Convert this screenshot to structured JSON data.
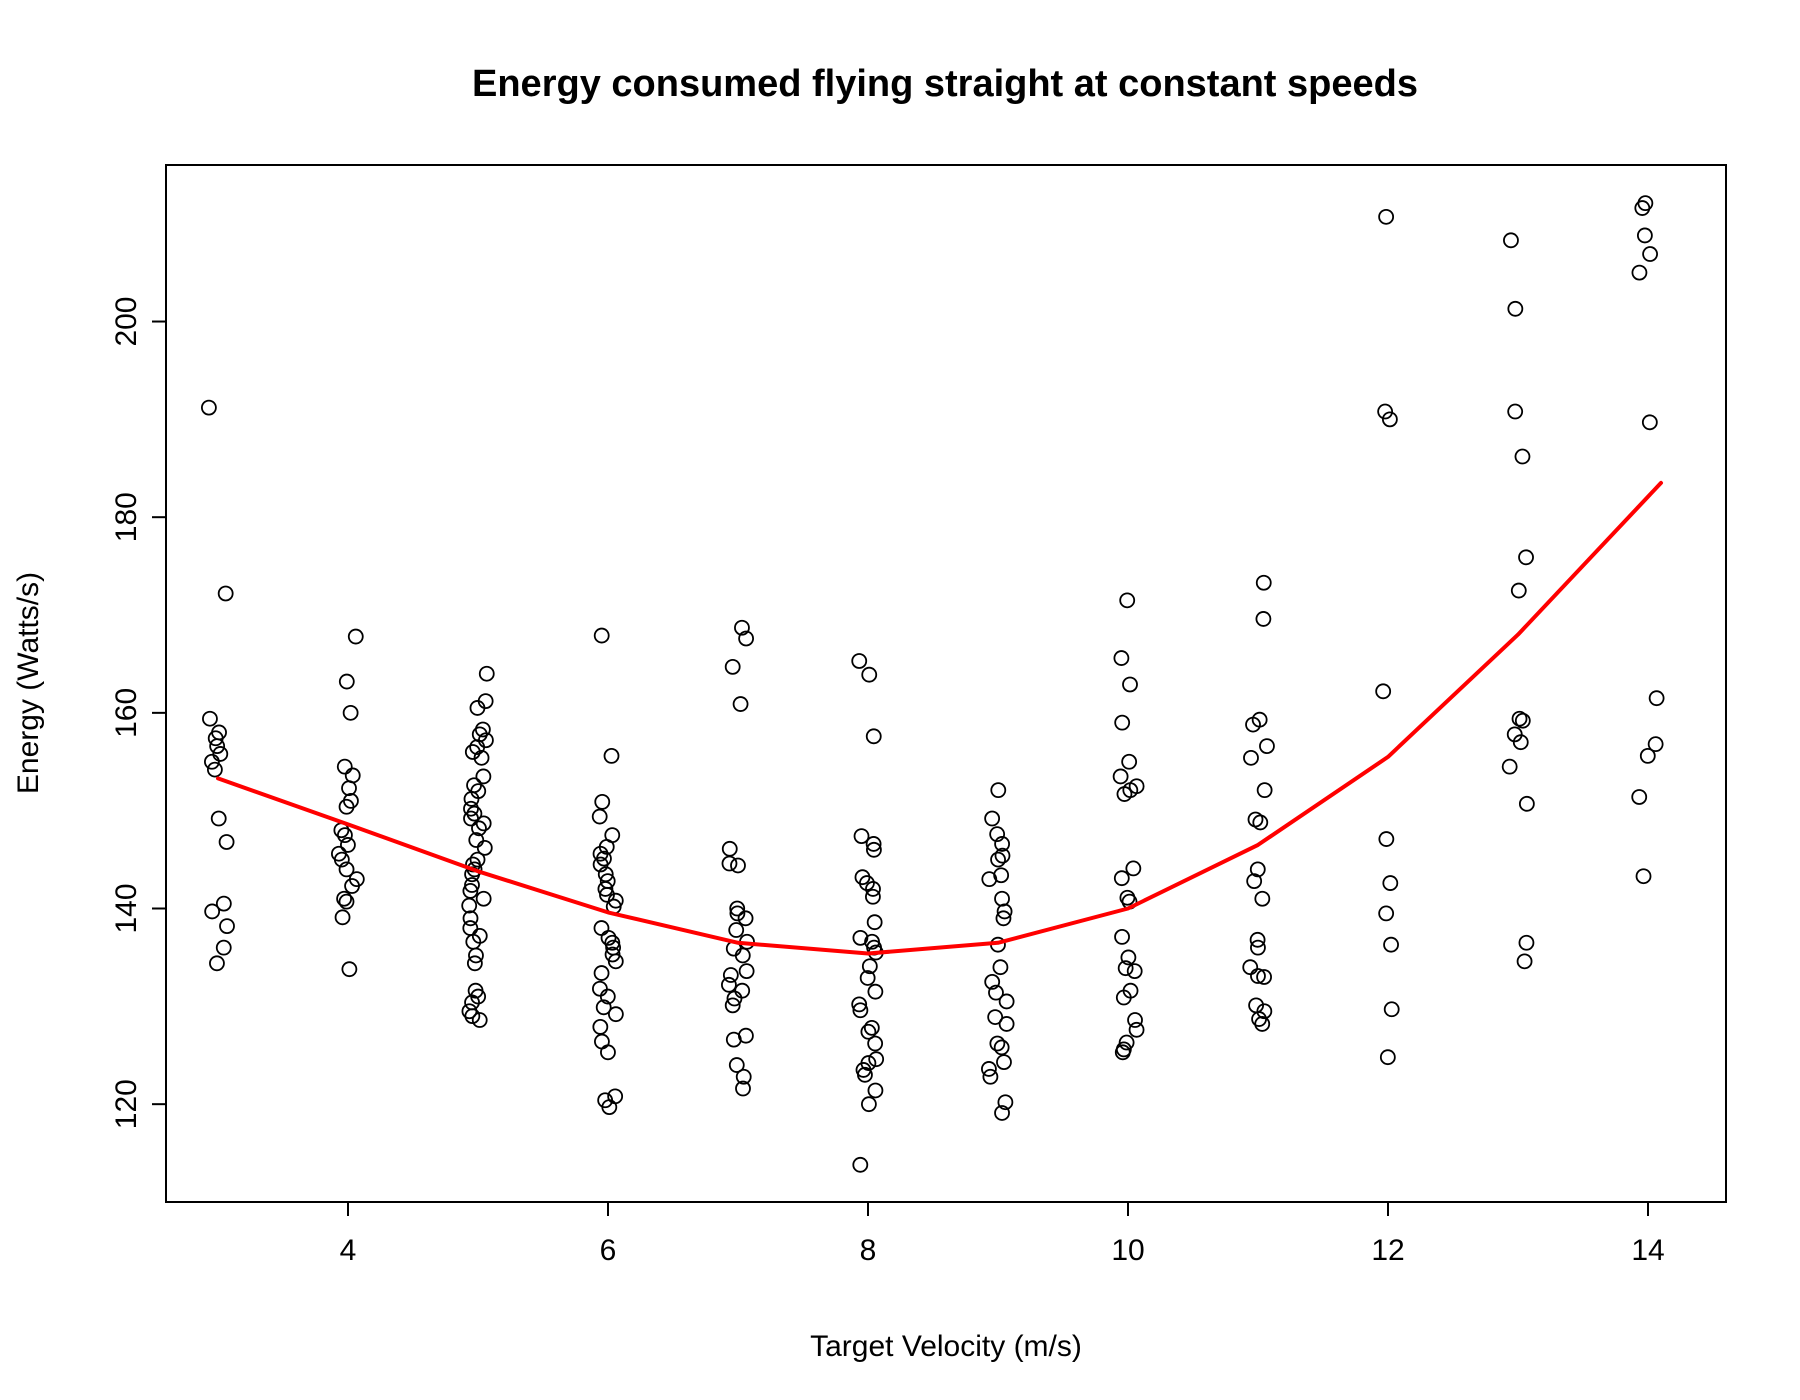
{
  "chart_data": {
    "type": "scatter",
    "title": "Energy consumed flying straight at constant speeds",
    "xlabel": "Target Velocity (m/s)",
    "ylabel": "Energy (Watts/s)",
    "xlim": [
      2.6,
      14.6
    ],
    "ylim": [
      110,
      216
    ],
    "x_ticks": [
      4,
      6,
      8,
      10,
      12,
      14
    ],
    "y_ticks": [
      120,
      140,
      160,
      180,
      200
    ],
    "grid": false,
    "series": [
      {
        "kind": "points",
        "marker": "open-circle",
        "color": "#000000",
        "points": [
          [
            3.0,
            191.2
          ],
          [
            3.0,
            172.2
          ],
          [
            3.0,
            159.4
          ],
          [
            3.0,
            158.0
          ],
          [
            3.0,
            157.4
          ],
          [
            3.0,
            156.6
          ],
          [
            3.0,
            155.8
          ],
          [
            3.0,
            155.0
          ],
          [
            3.0,
            154.2
          ],
          [
            3.0,
            149.2
          ],
          [
            3.0,
            146.8
          ],
          [
            3.0,
            140.5
          ],
          [
            3.0,
            139.7
          ],
          [
            3.0,
            138.2
          ],
          [
            3.0,
            136.0
          ],
          [
            3.0,
            134.4
          ],
          [
            4.0,
            167.8
          ],
          [
            4.0,
            163.2
          ],
          [
            4.0,
            160.0
          ],
          [
            4.0,
            154.5
          ],
          [
            4.0,
            153.6
          ],
          [
            4.0,
            152.3
          ],
          [
            4.0,
            151.0
          ],
          [
            4.0,
            150.4
          ],
          [
            4.0,
            148.0
          ],
          [
            4.0,
            147.5
          ],
          [
            4.0,
            146.5
          ],
          [
            4.0,
            145.6
          ],
          [
            4.0,
            145.0
          ],
          [
            4.0,
            144.0
          ],
          [
            4.0,
            143.0
          ],
          [
            4.0,
            142.3
          ],
          [
            4.0,
            141.0
          ],
          [
            4.0,
            140.7
          ],
          [
            4.0,
            139.1
          ],
          [
            4.0,
            133.8
          ],
          [
            5.0,
            164.0
          ],
          [
            5.0,
            161.2
          ],
          [
            5.0,
            160.5
          ],
          [
            5.0,
            158.3
          ],
          [
            5.0,
            157.8
          ],
          [
            5.0,
            157.2
          ],
          [
            5.0,
            156.5
          ],
          [
            5.0,
            156.0
          ],
          [
            5.0,
            155.4
          ],
          [
            5.0,
            153.5
          ],
          [
            5.0,
            152.6
          ],
          [
            5.0,
            152.0
          ],
          [
            5.0,
            151.2
          ],
          [
            5.0,
            150.2
          ],
          [
            5.0,
            149.7
          ],
          [
            5.0,
            149.2
          ],
          [
            5.0,
            148.7
          ],
          [
            5.0,
            148.2
          ],
          [
            5.0,
            147.0
          ],
          [
            5.0,
            146.2
          ],
          [
            5.0,
            145.0
          ],
          [
            5.0,
            144.5
          ],
          [
            5.0,
            144.0
          ],
          [
            5.0,
            143.5
          ],
          [
            5.0,
            142.4
          ],
          [
            5.0,
            141.8
          ],
          [
            5.0,
            141.0
          ],
          [
            5.0,
            140.3
          ],
          [
            5.0,
            139.0
          ],
          [
            5.0,
            138.0
          ],
          [
            5.0,
            137.2
          ],
          [
            5.0,
            136.6
          ],
          [
            5.0,
            135.2
          ],
          [
            5.0,
            134.4
          ],
          [
            5.0,
            131.6
          ],
          [
            5.0,
            131.0
          ],
          [
            5.0,
            130.4
          ],
          [
            5.0,
            129.5
          ],
          [
            5.0,
            129.0
          ],
          [
            5.0,
            128.6
          ],
          [
            6.0,
            167.9
          ],
          [
            6.0,
            155.6
          ],
          [
            6.0,
            150.9
          ],
          [
            6.0,
            149.4
          ],
          [
            6.0,
            147.5
          ],
          [
            6.0,
            146.3
          ],
          [
            6.0,
            145.6
          ],
          [
            6.0,
            145.1
          ],
          [
            6.0,
            144.5
          ],
          [
            6.0,
            143.5
          ],
          [
            6.0,
            142.8
          ],
          [
            6.0,
            142.0
          ],
          [
            6.0,
            141.4
          ],
          [
            6.0,
            140.8
          ],
          [
            6.0,
            140.2
          ],
          [
            6.0,
            138.0
          ],
          [
            6.0,
            137.0
          ],
          [
            6.0,
            136.5
          ],
          [
            6.0,
            136.0
          ],
          [
            6.0,
            135.3
          ],
          [
            6.0,
            134.6
          ],
          [
            6.0,
            133.4
          ],
          [
            6.0,
            131.8
          ],
          [
            6.0,
            131.0
          ],
          [
            6.0,
            129.9
          ],
          [
            6.0,
            129.2
          ],
          [
            6.0,
            127.9
          ],
          [
            6.0,
            126.4
          ],
          [
            6.0,
            125.3
          ],
          [
            6.0,
            120.8
          ],
          [
            6.0,
            120.4
          ],
          [
            6.0,
            119.7
          ],
          [
            7.0,
            168.7
          ],
          [
            7.0,
            167.6
          ],
          [
            7.0,
            164.7
          ],
          [
            7.0,
            160.9
          ],
          [
            7.0,
            146.1
          ],
          [
            7.0,
            144.6
          ],
          [
            7.0,
            144.4
          ],
          [
            7.0,
            140.0
          ],
          [
            7.0,
            139.5
          ],
          [
            7.0,
            139.0
          ],
          [
            7.0,
            137.8
          ],
          [
            7.0,
            136.6
          ],
          [
            7.0,
            135.9
          ],
          [
            7.0,
            135.2
          ],
          [
            7.0,
            133.6
          ],
          [
            7.0,
            133.2
          ],
          [
            7.0,
            132.2
          ],
          [
            7.0,
            131.6
          ],
          [
            7.0,
            130.8
          ],
          [
            7.0,
            130.1
          ],
          [
            7.0,
            127.0
          ],
          [
            7.0,
            126.6
          ],
          [
            7.0,
            124.0
          ],
          [
            7.0,
            122.8
          ],
          [
            7.0,
            121.6
          ],
          [
            8.0,
            165.3
          ],
          [
            8.0,
            163.9
          ],
          [
            8.0,
            157.6
          ],
          [
            8.0,
            147.4
          ],
          [
            8.0,
            146.6
          ],
          [
            8.0,
            146.0
          ],
          [
            8.0,
            143.2
          ],
          [
            8.0,
            142.6
          ],
          [
            8.0,
            142.0
          ],
          [
            8.0,
            141.2
          ],
          [
            8.0,
            138.6
          ],
          [
            8.0,
            137.0
          ],
          [
            8.0,
            136.6
          ],
          [
            8.0,
            136.0
          ],
          [
            8.0,
            135.5
          ],
          [
            8.0,
            134.1
          ],
          [
            8.0,
            132.9
          ],
          [
            8.0,
            131.5
          ],
          [
            8.0,
            130.2
          ],
          [
            8.0,
            129.6
          ],
          [
            8.0,
            127.8
          ],
          [
            8.0,
            127.4
          ],
          [
            8.0,
            126.2
          ],
          [
            8.0,
            124.6
          ],
          [
            8.0,
            124.2
          ],
          [
            8.0,
            123.5
          ],
          [
            8.0,
            123.0
          ],
          [
            8.0,
            121.4
          ],
          [
            8.0,
            120.0
          ],
          [
            8.0,
            113.8
          ],
          [
            9.0,
            152.1
          ],
          [
            9.0,
            149.2
          ],
          [
            9.0,
            147.6
          ],
          [
            9.0,
            146.6
          ],
          [
            9.0,
            145.4
          ],
          [
            9.0,
            145.0
          ],
          [
            9.0,
            143.4
          ],
          [
            9.0,
            143.0
          ],
          [
            9.0,
            141.0
          ],
          [
            9.0,
            139.7
          ],
          [
            9.0,
            139.0
          ],
          [
            9.0,
            136.3
          ],
          [
            9.0,
            134.0
          ],
          [
            9.0,
            132.5
          ],
          [
            9.0,
            131.4
          ],
          [
            9.0,
            130.5
          ],
          [
            9.0,
            128.9
          ],
          [
            9.0,
            128.2
          ],
          [
            9.0,
            126.2
          ],
          [
            9.0,
            125.8
          ],
          [
            9.0,
            124.3
          ],
          [
            9.0,
            123.6
          ],
          [
            9.0,
            122.8
          ],
          [
            9.0,
            120.2
          ],
          [
            9.0,
            119.1
          ],
          [
            10.0,
            171.5
          ],
          [
            10.0,
            165.6
          ],
          [
            10.0,
            162.9
          ],
          [
            10.0,
            159.0
          ],
          [
            10.0,
            155.0
          ],
          [
            10.0,
            153.5
          ],
          [
            10.0,
            152.5
          ],
          [
            10.0,
            152.1
          ],
          [
            10.0,
            151.7
          ],
          [
            10.0,
            144.1
          ],
          [
            10.0,
            143.1
          ],
          [
            10.0,
            141.1
          ],
          [
            10.0,
            140.7
          ],
          [
            10.0,
            137.1
          ],
          [
            10.0,
            135.0
          ],
          [
            10.0,
            133.9
          ],
          [
            10.0,
            133.6
          ],
          [
            10.0,
            131.6
          ],
          [
            10.0,
            130.9
          ],
          [
            10.0,
            128.6
          ],
          [
            10.0,
            127.6
          ],
          [
            10.0,
            126.3
          ],
          [
            10.0,
            125.6
          ],
          [
            10.0,
            125.3
          ],
          [
            11.0,
            173.3
          ],
          [
            11.0,
            169.6
          ],
          [
            11.0,
            159.3
          ],
          [
            11.0,
            158.8
          ],
          [
            11.0,
            156.6
          ],
          [
            11.0,
            155.4
          ],
          [
            11.0,
            152.1
          ],
          [
            11.0,
            149.1
          ],
          [
            11.0,
            148.8
          ],
          [
            11.0,
            144.0
          ],
          [
            11.0,
            142.8
          ],
          [
            11.0,
            141.0
          ],
          [
            11.0,
            136.8
          ],
          [
            11.0,
            136.0
          ],
          [
            11.0,
            134.0
          ],
          [
            11.0,
            133.1
          ],
          [
            11.0,
            133.0
          ],
          [
            11.0,
            130.1
          ],
          [
            11.0,
            129.5
          ],
          [
            11.0,
            128.7
          ],
          [
            11.0,
            128.2
          ],
          [
            12.0,
            210.7
          ],
          [
            12.0,
            190.8
          ],
          [
            12.0,
            190.0
          ],
          [
            12.0,
            162.2
          ],
          [
            12.0,
            147.1
          ],
          [
            12.0,
            142.6
          ],
          [
            12.0,
            139.5
          ],
          [
            12.0,
            136.3
          ],
          [
            12.0,
            129.7
          ],
          [
            12.0,
            124.8
          ],
          [
            13.0,
            208.3
          ],
          [
            13.0,
            201.3
          ],
          [
            13.0,
            190.8
          ],
          [
            13.0,
            186.2
          ],
          [
            13.0,
            175.9
          ],
          [
            13.0,
            172.5
          ],
          [
            13.0,
            159.4
          ],
          [
            13.0,
            159.2
          ],
          [
            13.0,
            157.8
          ],
          [
            13.0,
            157.0
          ],
          [
            13.0,
            154.5
          ],
          [
            13.0,
            150.7
          ],
          [
            13.0,
            136.5
          ],
          [
            13.0,
            134.6
          ],
          [
            14.0,
            212.1
          ],
          [
            14.0,
            211.6
          ],
          [
            14.0,
            208.8
          ],
          [
            14.0,
            206.9
          ],
          [
            14.0,
            205.0
          ],
          [
            14.0,
            189.7
          ],
          [
            14.0,
            161.5
          ],
          [
            14.0,
            156.8
          ],
          [
            14.0,
            155.6
          ],
          [
            14.0,
            151.4
          ],
          [
            14.0,
            143.3
          ]
        ]
      },
      {
        "kind": "line",
        "color": "#ff0000",
        "x": [
          3,
          4,
          5,
          6,
          7,
          8,
          9,
          10,
          11,
          12,
          13,
          14.1
        ],
        "y": [
          153.3,
          148.6,
          143.8,
          139.6,
          136.5,
          135.4,
          136.5,
          140.0,
          146.5,
          155.5,
          168.0,
          183.5
        ]
      }
    ]
  }
}
